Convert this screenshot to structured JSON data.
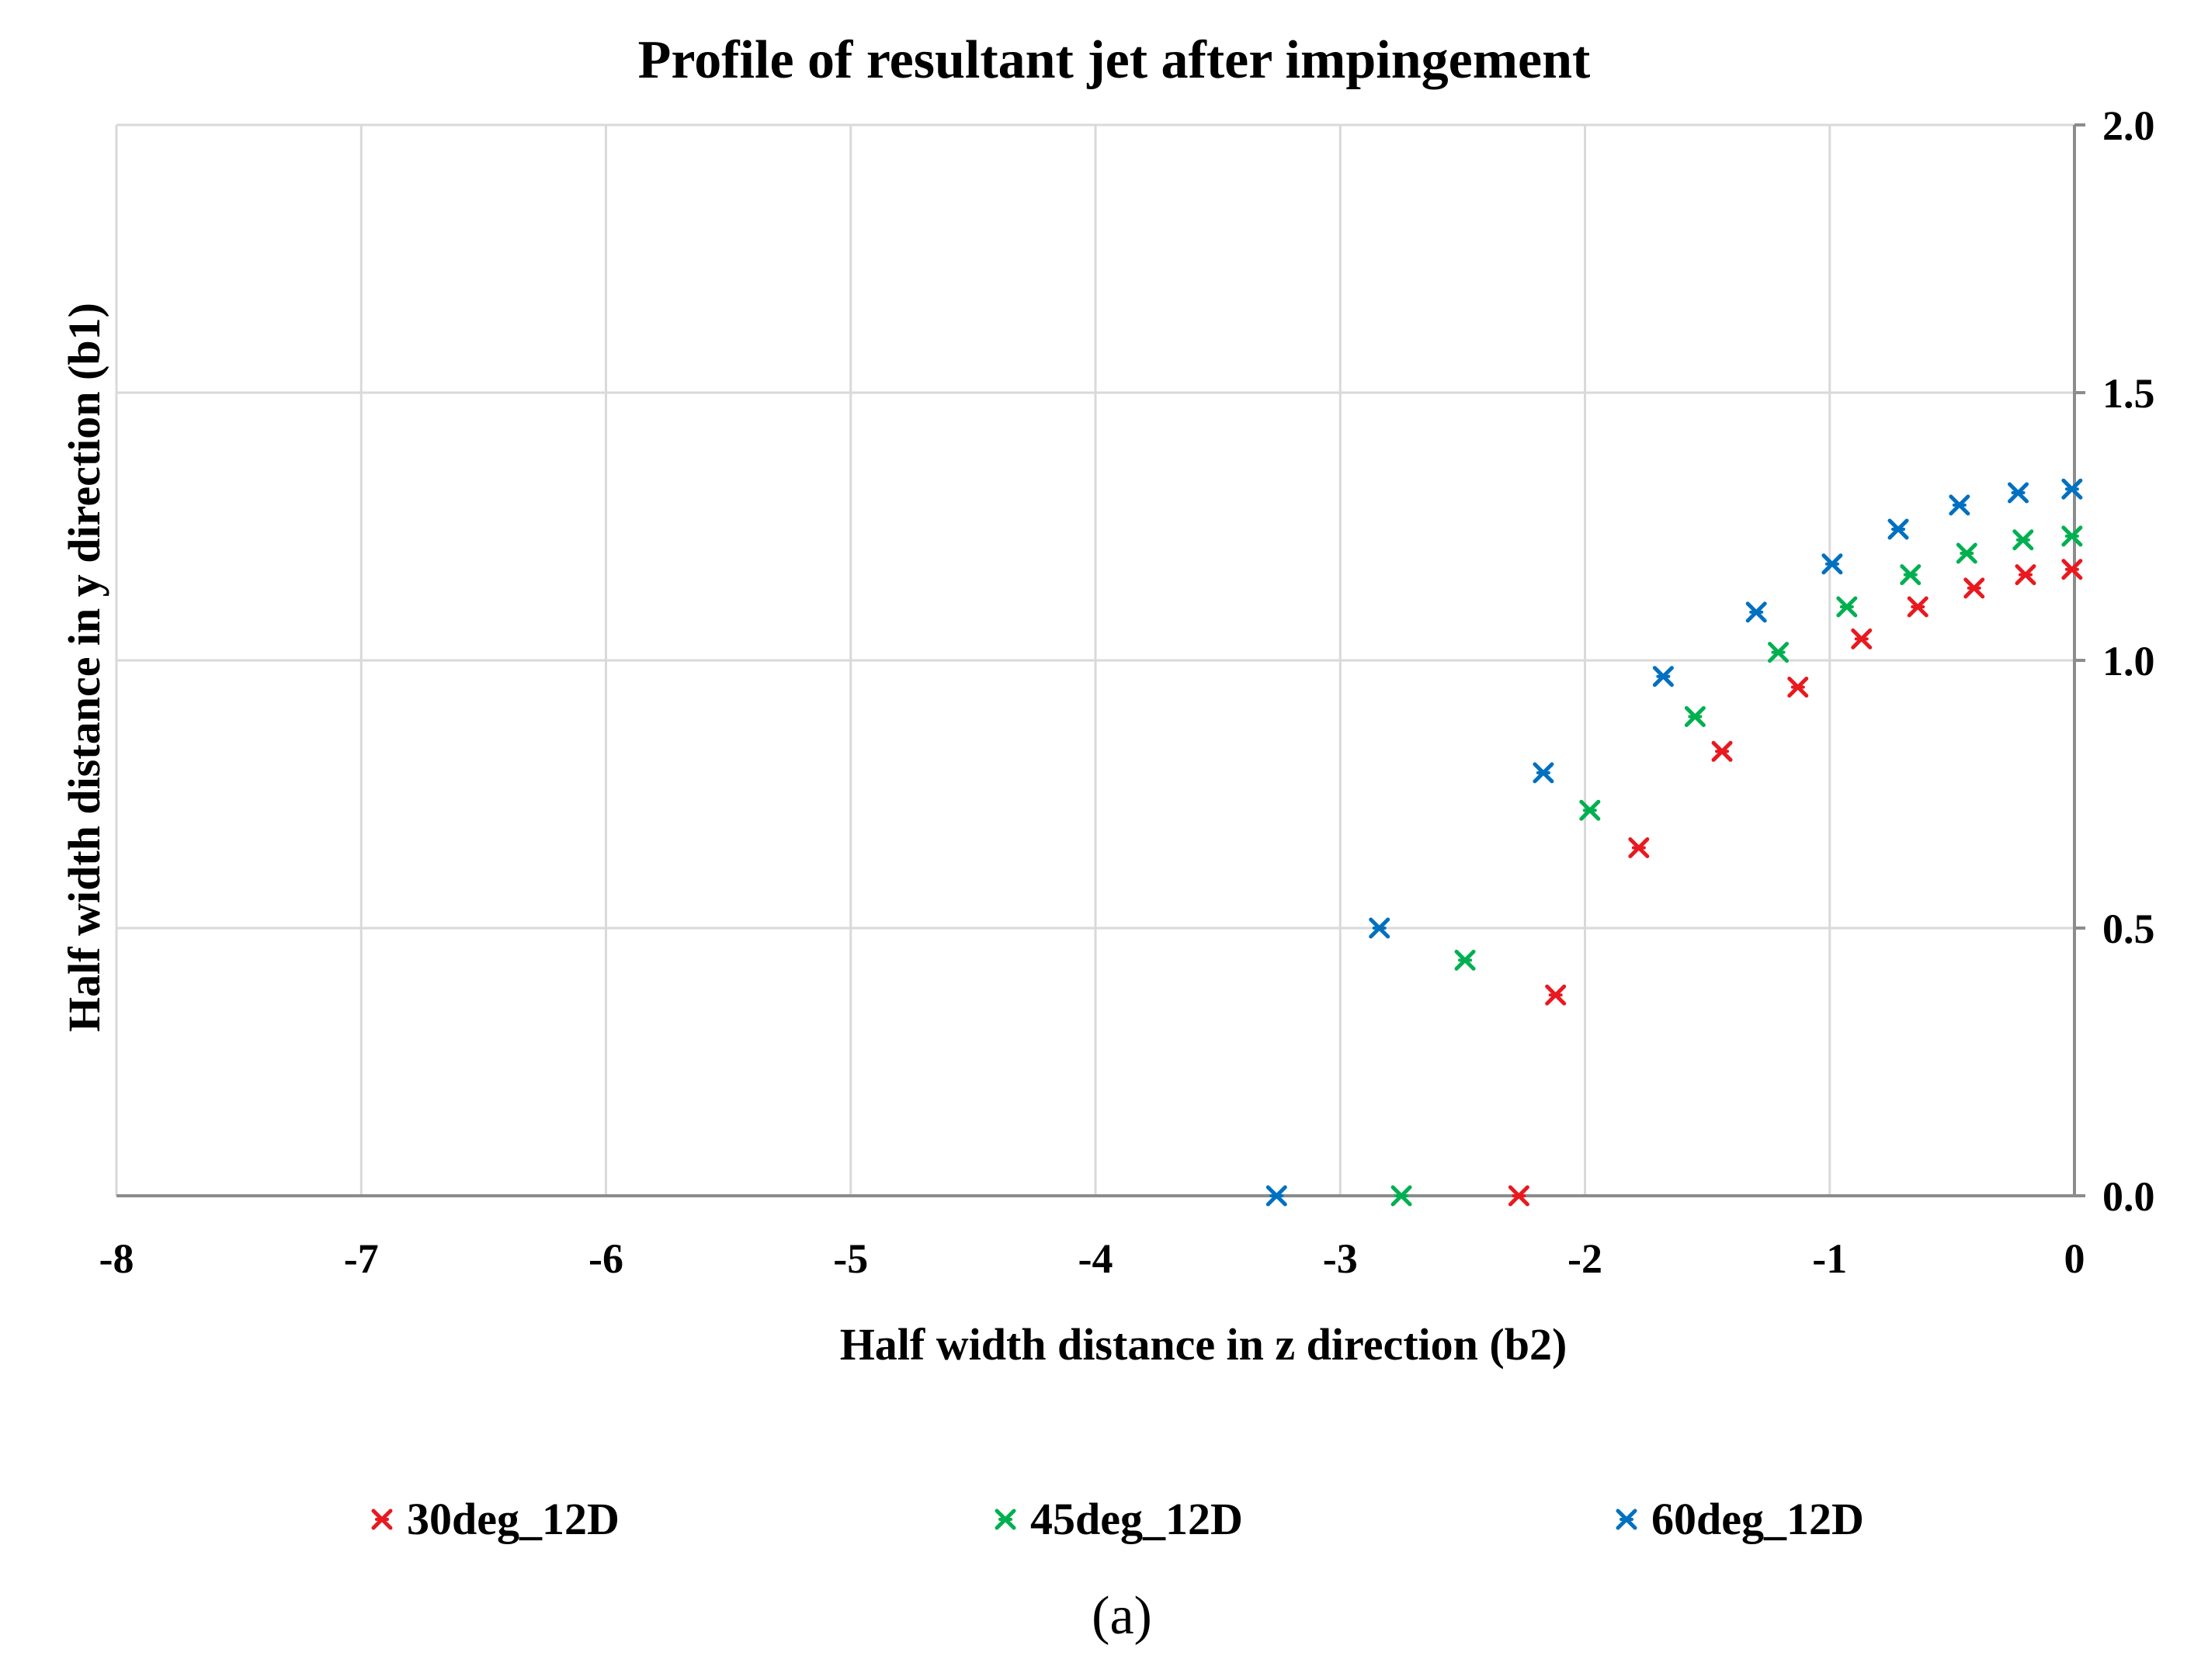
{
  "chart_data": {
    "type": "scatter",
    "title": "Profile of resultant jet after impingement",
    "xlabel": "Half width distance in z direction (b2)",
    "ylabel": "Half width distance in y direction (b1)",
    "xlim": [
      -8,
      0
    ],
    "ylim": [
      0.0,
      2.0
    ],
    "x_ticks": [
      -8,
      -7,
      -6,
      -5,
      -4,
      -3,
      -2,
      -1,
      0
    ],
    "x_tick_labels": [
      "-8",
      "-7",
      "-6",
      "-5",
      "-4",
      "-3",
      "-2",
      "-1",
      "0"
    ],
    "y_ticks": [
      0.0,
      0.5,
      1.0,
      1.5,
      2.0
    ],
    "y_tick_labels": [
      "0.0",
      "0.5",
      "1.0",
      "1.5",
      "2.0"
    ],
    "y_axis_side": "right",
    "grid": true,
    "legend_position": "bottom",
    "marker": "asterisk",
    "series": [
      {
        "name": "30deg_12D",
        "color": "#e8191f",
        "points": [
          [
            -2.27,
            0.0
          ],
          [
            -2.12,
            0.375
          ],
          [
            -1.78,
            0.65
          ],
          [
            -1.44,
            0.83
          ],
          [
            -1.13,
            0.95
          ],
          [
            -0.87,
            1.04
          ],
          [
            -0.64,
            1.1
          ],
          [
            -0.41,
            1.135
          ],
          [
            -0.2,
            1.16
          ],
          [
            -0.01,
            1.17
          ]
        ]
      },
      {
        "name": "45deg_12D",
        "color": "#00b050",
        "points": [
          [
            -2.75,
            0.0
          ],
          [
            -2.49,
            0.44
          ],
          [
            -1.98,
            0.72
          ],
          [
            -1.55,
            0.895
          ],
          [
            -1.21,
            1.015
          ],
          [
            -0.93,
            1.1
          ],
          [
            -0.67,
            1.16
          ],
          [
            -0.44,
            1.2
          ],
          [
            -0.21,
            1.225
          ],
          [
            -0.01,
            1.232
          ]
        ]
      },
      {
        "name": "60deg_12D",
        "color": "#0070c0",
        "points": [
          [
            -3.26,
            0.0
          ],
          [
            -2.84,
            0.5
          ],
          [
            -2.17,
            0.79
          ],
          [
            -1.68,
            0.97
          ],
          [
            -1.3,
            1.09
          ],
          [
            -0.99,
            1.18
          ],
          [
            -0.72,
            1.245
          ],
          [
            -0.47,
            1.29
          ],
          [
            -0.23,
            1.313
          ],
          [
            -0.01,
            1.32
          ]
        ]
      }
    ]
  },
  "caption": "(a)"
}
